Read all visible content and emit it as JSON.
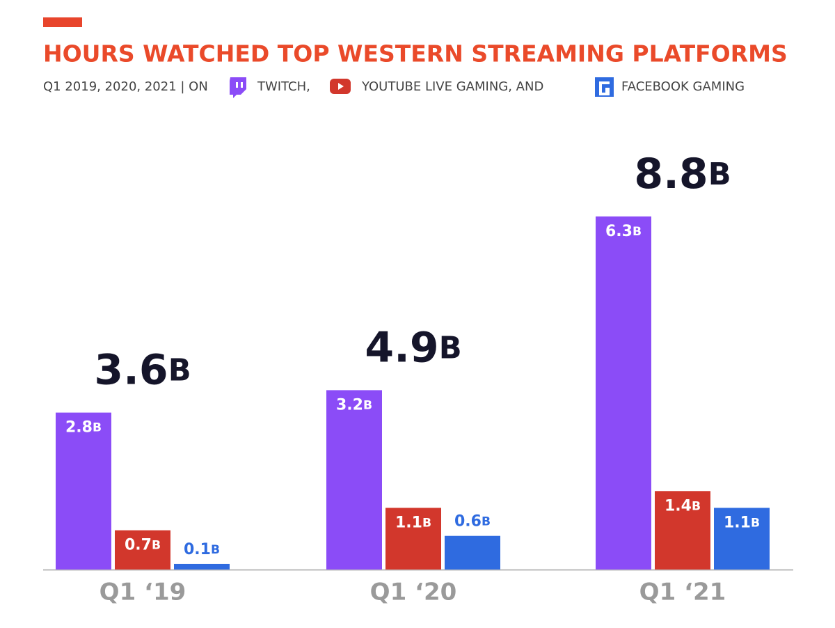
{
  "chart_data": {
    "type": "bar",
    "title": "HOURS WATCHED TOP WESTERN STREAMING PLATFORMS",
    "subtitle": "Q1 2019, 2020, 2021 | ON",
    "categories": [
      "Q1 ‘19",
      "Q1 ‘20",
      "Q1 ‘21"
    ],
    "series": [
      {
        "name": "TWITCH,",
        "color": "#8b4cf7",
        "values": [
          2.8,
          3.2,
          6.3
        ],
        "value_labels": [
          "2.8B",
          "3.2B",
          "6.3B"
        ]
      },
      {
        "name": "YOUTUBE LIVE GAMING, AND",
        "color": "#d2372c",
        "values": [
          0.7,
          1.1,
          1.4
        ],
        "value_labels": [
          "0.7B",
          "1.1B",
          "1.4B"
        ]
      },
      {
        "name": "FACEBOOK GAMING",
        "color": "#2f6be0",
        "values": [
          0.1,
          0.6,
          1.1
        ],
        "value_labels": [
          "0.1B",
          "0.6B",
          "1.1B"
        ]
      }
    ],
    "totals": {
      "values": [
        3.6,
        4.9,
        8.8
      ],
      "value_labels": [
        "3.6B",
        "4.9B",
        "8.8B"
      ]
    }
  }
}
